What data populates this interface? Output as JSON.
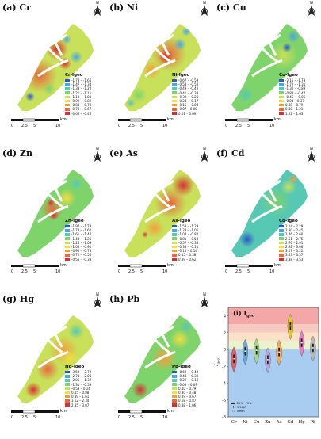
{
  "panels": [
    {
      "id": "cr",
      "title": "(a) Cr",
      "legend_title": "Cr-Igeo",
      "ranges": [
        "-1.73 – -1.66",
        "-1.47 – -1.34",
        "-1.33 – -1.22",
        "-1.21 – -1.11",
        "-1.10 – -1.00",
        "-0.99 – -0.89",
        "-0.88 – -0.79",
        "-0.78 – -0.67",
        "-0.66 – -0.46"
      ]
    },
    {
      "id": "ni",
      "title": "(b) Ni",
      "legend_title": "Ni-Igeo",
      "ranges": [
        "-0.67 – -0.59",
        "-0.58 – -0.50",
        "-0.49 – -0.42",
        "-0.41 – -0.33",
        "-0.32 – -0.25",
        "-0.24 – -0.17",
        "-0.16 – -0.08",
        "-0.07 – 0.00",
        "0.01 – 0.09"
      ]
    },
    {
      "id": "cu",
      "title": "(c) Cu",
      "legend_title": "Cu-Igeo",
      "ranges": [
        "-2.15 – -1.73",
        "-1.72 – -1.31",
        "-1.30 – -0.89",
        "-0.88 – -0.47",
        "-0.46 – -0.05",
        "-0.04 – 0.37",
        "0.38 – 0.79",
        "0.80 – 1.21",
        "1.22 – 1.63"
      ]
    },
    {
      "id": "zn",
      "title": "(d) Zn",
      "legend_title": "Zn-Igeo",
      "ranges": [
        "-1.97 – -1.79",
        "-1.78 – -1.62",
        "-1.61 – -1.44",
        "-1.43 – -1.26",
        "-1.25 – -1.09",
        "-1.08 – -0.91",
        "-0.90 – -0.73",
        "-0.72 – -0.56",
        "-0.55 – -0.38"
      ]
    },
    {
      "id": "as",
      "title": "(e) As",
      "legend_title": "As-Igeo",
      "ranges": [
        "-1.53 – -1.29",
        "-1.28 – -1.05",
        "-1.04 – -0.82",
        "-0.81 – -0.58",
        "-0.57 – -0.34",
        "-0.33 – -0.11",
        "-0.10 – 0.14",
        "0.15 – 0.38",
        "0.39 – 0.62"
      ]
    },
    {
      "id": "cd",
      "title": "(f) Cd",
      "legend_title": "Cd-Igeo",
      "ranges": [
        "2.14 – 2.29",
        "2.30 – 2.45",
        "2.46 – 2.60",
        "2.61 – 2.75",
        "2.76 – 2.91",
        "2.92 – 3.06",
        "3.07 – 3.22",
        "3.23 – 3.37",
        "3.38 – 3.53"
      ]
    },
    {
      "id": "hg",
      "title": "(g) Hg",
      "legend_title": "Hg-Igeo",
      "ranges": [
        "-3.52 – -2.79",
        "-2.78 – -2.06",
        "-2.05 – -1.32",
        "-1.31 – -0.59",
        "-0.58 – 0.14",
        "0.15 – 0.88",
        "0.89 – 1.61",
        "1.62 – 2.34",
        "2.35 – 3.07"
      ]
    },
    {
      "id": "pb",
      "title": "(h) Pb",
      "legend_title": "Pb-Igeo",
      "ranges": [
        "-0.69 – -0.49",
        "-0.48 – -0.30",
        "-0.29 – -0.10",
        "-0.09 – 0.09",
        "0.10 – 0.29",
        "0.30 – 0.48",
        "0.49 – 0.67",
        "0.68 – 0.87",
        "0.88 – 1.06"
      ]
    }
  ],
  "scale_labels": [
    "0",
    "2.5",
    "5",
    "10"
  ],
  "scale_unit": "km",
  "north_label": "N",
  "legend_colors": [
    "#2b58c8",
    "#47a7e0",
    "#56c8b4",
    "#7fd36b",
    "#c8e05a",
    "#f2df3f",
    "#f3a03c",
    "#e56a3d",
    "#d7302f"
  ],
  "violin": {
    "title": "(i) I",
    "title_sub": "geo",
    "ylabel": "I",
    "ylabel_sub": "geo",
    "ymin": -8,
    "ymax": 5,
    "yticks": [
      "4",
      "2",
      "0",
      "-2",
      "-4",
      "-6",
      "-8"
    ],
    "categories": [
      "Cr",
      "Ni",
      "Cu",
      "Zn",
      "As",
      "Cd",
      "Hg",
      "Pb"
    ],
    "medians": [
      -1.1,
      -0.2,
      -0.1,
      -1.2,
      -0.3,
      2.8,
      0.8,
      0.2
    ],
    "colors": [
      "#e35d62",
      "#6aa9d8",
      "#a9d88a",
      "#b9a6d9",
      "#f3a85a",
      "#e2c629",
      "#e47fc0",
      "#b9b9b9"
    ],
    "bands": [
      {
        "from": 3,
        "to": 5,
        "color": "#f4a7a7"
      },
      {
        "from": 2,
        "to": 3,
        "color": "#f8c9c0"
      },
      {
        "from": 1,
        "to": 2,
        "color": "#fbe1c8"
      },
      {
        "from": 0,
        "to": 1,
        "color": "#e9f3cf"
      },
      {
        "from": -8,
        "to": 0,
        "color": "#a9cdf0"
      }
    ],
    "legend_box": "25%~75%",
    "legend_range": "1.5IQR",
    "legend_mean": "Mean"
  }
}
